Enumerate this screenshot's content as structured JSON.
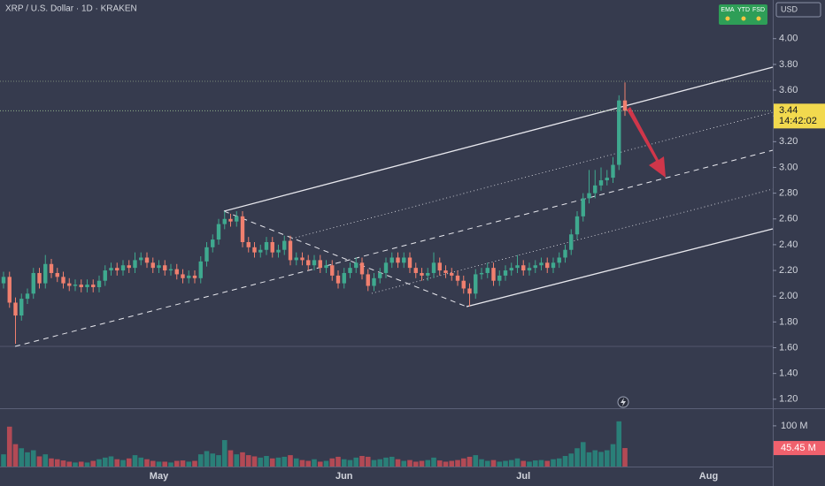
{
  "chart_data": {
    "type": "candlestick",
    "title": "XRP / U.S. Dollar · 1D · KRAKEN",
    "currency": "USD",
    "indicators": [
      "EMA",
      "YTD",
      "FSD"
    ],
    "countdown": "14:42:02",
    "up_color": "#3fa98f",
    "down_color": "#f0806f",
    "volume_up_color": "#2a7f78",
    "volume_down_color": "#b24a55",
    "price_label_color": "#f2d94e",
    "volume_label_color": "#f0616d",
    "grid": false,
    "ylim": [
      1.13,
      4.3
    ],
    "yticks": [
      {
        "value": 1.2,
        "label": "1.20"
      },
      {
        "value": 1.4,
        "label": "1.40"
      },
      {
        "value": 1.6,
        "label": "1.60"
      },
      {
        "value": 1.8,
        "label": "1.80"
      },
      {
        "value": 2.0,
        "label": "2.00"
      },
      {
        "value": 2.2,
        "label": "2.20"
      },
      {
        "value": 2.4,
        "label": "2.40"
      },
      {
        "value": 2.6,
        "label": "2.60"
      },
      {
        "value": 2.8,
        "label": "2.80"
      },
      {
        "value": 3.0,
        "label": "3.00"
      },
      {
        "value": 3.2,
        "label": "3.20"
      },
      {
        "value": 3.4,
        "label": "3.40"
      },
      {
        "value": 3.6,
        "label": "3.60"
      },
      {
        "value": 3.8,
        "label": "3.80"
      },
      {
        "value": 4.0,
        "label": "4.00"
      }
    ],
    "volume_lim": [
      0,
      141
    ],
    "volume_ticks": [
      {
        "value": 100,
        "label": "100 M"
      }
    ],
    "last_volume_label": "45.45 M",
    "categories": [
      null,
      null,
      null,
      null,
      null,
      null,
      null,
      null,
      null,
      null,
      null,
      null,
      null,
      null,
      null,
      null,
      null,
      null,
      null,
      null,
      null,
      null,
      null,
      null,
      null,
      null,
      "May",
      null,
      null,
      null,
      null,
      null,
      null,
      null,
      null,
      null,
      null,
      null,
      null,
      null,
      null,
      null,
      null,
      null,
      null,
      null,
      null,
      null,
      null,
      null,
      null,
      null,
      null,
      null,
      null,
      null,
      null,
      "Jun",
      null,
      null,
      null,
      null,
      null,
      null,
      null,
      null,
      null,
      null,
      null,
      null,
      null,
      null,
      null,
      null,
      null,
      null,
      null,
      null,
      null,
      null,
      null,
      null,
      null,
      null,
      null,
      null,
      null,
      "Jul",
      null,
      null,
      null,
      null,
      null,
      null,
      null,
      null,
      null,
      null,
      null,
      null,
      null,
      null,
      null,
      null,
      null,
      null,
      null,
      null,
      null,
      null,
      null,
      null,
      null,
      null,
      null,
      null,
      null,
      null,
      "Aug"
    ],
    "open": [
      2.1,
      2.15,
      1.95,
      1.85,
      1.98,
      2.02,
      2.18,
      2.1,
      2.25,
      2.18,
      2.15,
      2.1,
      2.08,
      2.09,
      2.07,
      2.09,
      2.07,
      2.12,
      2.2,
      2.22,
      2.2,
      2.24,
      2.22,
      2.28,
      2.3,
      2.26,
      2.22,
      2.24,
      2.2,
      2.21,
      2.17,
      2.14,
      2.16,
      2.14,
      2.27,
      2.38,
      2.44,
      2.56,
      2.6,
      2.58,
      2.62,
      2.42,
      2.38,
      2.34,
      2.36,
      2.42,
      2.34,
      2.36,
      2.43,
      2.28,
      2.3,
      2.28,
      2.24,
      2.28,
      2.22,
      2.24,
      2.16,
      2.1,
      2.18,
      2.22,
      2.26,
      2.17,
      2.08,
      2.14,
      2.18,
      2.26,
      2.3,
      2.26,
      2.3,
      2.22,
      2.18,
      2.16,
      2.18,
      2.26,
      2.2,
      2.18,
      2.16,
      2.12,
      2.06,
      2.02,
      2.17,
      2.18,
      2.22,
      2.12,
      2.16,
      2.2,
      2.22,
      2.24,
      2.2,
      2.22,
      2.24,
      2.26,
      2.22,
      2.26,
      2.3,
      2.36,
      2.48,
      2.62,
      2.76,
      2.8,
      2.86,
      2.9,
      2.92,
      3.02,
      3.52,
      null,
      null,
      null,
      null,
      null,
      null,
      null,
      null,
      null,
      null,
      null,
      null,
      null,
      null
    ],
    "high": [
      2.19,
      2.19,
      1.99,
      2.02,
      2.06,
      2.22,
      2.22,
      2.32,
      2.29,
      2.22,
      2.19,
      2.14,
      2.13,
      2.13,
      2.13,
      2.13,
      2.16,
      2.24,
      2.26,
      2.26,
      2.28,
      2.28,
      2.34,
      2.34,
      2.34,
      2.3,
      2.28,
      2.28,
      2.25,
      2.25,
      2.21,
      2.2,
      2.2,
      2.31,
      2.42,
      2.48,
      2.6,
      2.66,
      2.64,
      2.66,
      2.66,
      2.46,
      2.42,
      2.4,
      2.46,
      2.46,
      2.4,
      2.47,
      2.47,
      2.34,
      2.34,
      2.32,
      2.32,
      2.32,
      2.28,
      2.28,
      2.2,
      2.22,
      2.26,
      2.3,
      2.3,
      2.21,
      2.18,
      2.22,
      2.3,
      2.34,
      2.34,
      2.34,
      2.34,
      2.26,
      2.22,
      2.22,
      2.34,
      2.3,
      2.24,
      2.22,
      2.2,
      2.16,
      2.1,
      2.21,
      2.22,
      2.26,
      2.26,
      2.2,
      2.24,
      2.26,
      2.32,
      2.28,
      2.26,
      2.28,
      2.3,
      2.3,
      2.3,
      2.34,
      2.4,
      2.52,
      2.66,
      2.8,
      2.98,
      2.98,
      3.0,
      2.98,
      3.08,
      3.56,
      3.66,
      null,
      null,
      null,
      null,
      null,
      null,
      null,
      null,
      null,
      null,
      null,
      null,
      null,
      null
    ],
    "low": [
      2.06,
      1.91,
      1.63,
      1.81,
      1.94,
      1.98,
      2.06,
      2.06,
      2.14,
      2.11,
      2.06,
      2.04,
      2.04,
      2.03,
      2.03,
      2.03,
      2.03,
      2.08,
      2.16,
      2.16,
      2.16,
      2.18,
      2.18,
      2.24,
      2.22,
      2.18,
      2.18,
      2.16,
      2.16,
      2.13,
      2.1,
      2.1,
      2.1,
      2.1,
      2.23,
      2.34,
      2.4,
      2.52,
      2.54,
      2.54,
      2.38,
      2.34,
      2.3,
      2.3,
      2.32,
      2.3,
      2.3,
      2.32,
      2.24,
      2.24,
      2.24,
      2.2,
      2.2,
      2.18,
      2.18,
      2.12,
      2.06,
      2.06,
      2.14,
      2.18,
      2.13,
      2.04,
      2.04,
      2.1,
      2.14,
      2.22,
      2.22,
      2.22,
      2.18,
      2.14,
      2.12,
      2.12,
      2.14,
      2.16,
      2.14,
      2.12,
      2.08,
      2.02,
      1.92,
      1.98,
      2.13,
      2.14,
      2.08,
      2.08,
      2.12,
      2.16,
      2.18,
      2.16,
      2.16,
      2.18,
      2.2,
      2.18,
      2.18,
      2.22,
      2.26,
      2.32,
      2.44,
      2.58,
      2.72,
      2.76,
      2.82,
      2.86,
      2.88,
      2.98,
      3.4,
      null,
      null,
      null,
      null,
      null,
      null,
      null,
      null,
      null,
      null,
      null,
      null,
      null,
      null
    ],
    "close": [
      2.15,
      1.95,
      1.85,
      1.98,
      2.02,
      2.18,
      2.1,
      2.25,
      2.18,
      2.15,
      2.1,
      2.08,
      2.09,
      2.07,
      2.09,
      2.07,
      2.12,
      2.2,
      2.22,
      2.2,
      2.24,
      2.22,
      2.28,
      2.3,
      2.26,
      2.22,
      2.24,
      2.2,
      2.21,
      2.17,
      2.14,
      2.16,
      2.14,
      2.27,
      2.38,
      2.44,
      2.56,
      2.6,
      2.58,
      2.62,
      2.42,
      2.38,
      2.34,
      2.36,
      2.42,
      2.34,
      2.36,
      2.43,
      2.28,
      2.3,
      2.28,
      2.24,
      2.28,
      2.22,
      2.24,
      2.16,
      2.1,
      2.18,
      2.22,
      2.26,
      2.17,
      2.08,
      2.14,
      2.18,
      2.26,
      2.3,
      2.26,
      2.3,
      2.22,
      2.18,
      2.16,
      2.18,
      2.26,
      2.2,
      2.18,
      2.16,
      2.12,
      2.06,
      2.02,
      2.17,
      2.18,
      2.22,
      2.12,
      2.16,
      2.2,
      2.22,
      2.24,
      2.2,
      2.22,
      2.24,
      2.26,
      2.22,
      2.26,
      2.3,
      2.36,
      2.48,
      2.62,
      2.76,
      2.8,
      2.86,
      2.9,
      2.92,
      3.02,
      3.52,
      3.44,
      null,
      null,
      null,
      null,
      null,
      null,
      null,
      null,
      null,
      null,
      null,
      null,
      null,
      null
    ],
    "volume": [
      30,
      98,
      55,
      45,
      35,
      40,
      25,
      30,
      20,
      18,
      15,
      12,
      10,
      12,
      10,
      14,
      18,
      22,
      25,
      18,
      16,
      20,
      28,
      22,
      18,
      14,
      12,
      12,
      10,
      14,
      15,
      12,
      14,
      30,
      38,
      32,
      28,
      65,
      40,
      30,
      35,
      28,
      25,
      22,
      26,
      20,
      22,
      24,
      28,
      20,
      16,
      14,
      18,
      12,
      14,
      20,
      24,
      18,
      16,
      22,
      26,
      24,
      16,
      18,
      22,
      24,
      18,
      14,
      16,
      12,
      14,
      16,
      22,
      15,
      12,
      14,
      16,
      20,
      24,
      28,
      18,
      14,
      16,
      12,
      14,
      16,
      20,
      14,
      12,
      15,
      16,
      14,
      18,
      20,
      26,
      32,
      45,
      60,
      35,
      40,
      36,
      40,
      55,
      111,
      45.45,
      null,
      null,
      null,
      null,
      null,
      null,
      null,
      null,
      null,
      null,
      null,
      null,
      null,
      null
    ]
  }
}
